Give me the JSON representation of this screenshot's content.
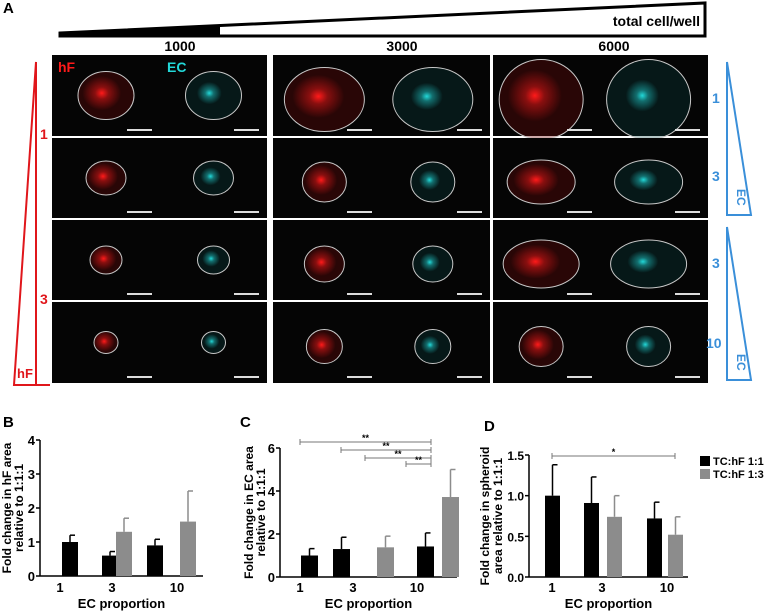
{
  "panels": {
    "a": "A",
    "b": "B",
    "c": "C",
    "d": "D"
  },
  "panel_a": {
    "gradient_label": "total cell/well",
    "columns": [
      "1000",
      "3000",
      "6000"
    ],
    "channel_labels": {
      "hf": "hF",
      "ec": "EC"
    },
    "left_wedge": {
      "label": "hF",
      "ticks": [
        "1",
        "3"
      ],
      "color": "#e0161b"
    },
    "right_wedges": {
      "label": "EC",
      "ticks": [
        "1",
        "3",
        "3",
        "10"
      ],
      "color": "#3a8fd9"
    },
    "colors": {
      "hf": "#ff1a1a",
      "ec": "#22d8d8",
      "outline": "#c8c8c8"
    }
  },
  "legend": {
    "items": [
      {
        "label": "TC:hF 1:1",
        "color": "#000000"
      },
      {
        "label": "TC:hF 1:3",
        "color": "#8c8c8c"
      }
    ]
  },
  "chart_data": [
    {
      "type": "bar",
      "panel": "B",
      "ylabel": [
        "Fold change in hF area",
        "relative to 1:1:1"
      ],
      "xlabel": "EC proportion",
      "categories": [
        "1",
        "3",
        "10"
      ],
      "ylim": [
        0,
        4
      ],
      "yticks": [
        "0",
        "1",
        "2",
        "3",
        "4"
      ],
      "series": [
        {
          "name": "TC:hF 1:1",
          "values": [
            1.0,
            0.6,
            0.9
          ],
          "error": [
            0.2,
            0.12,
            0.18
          ]
        },
        {
          "name": "TC:hF 1:3",
          "values": [
            null,
            1.3,
            1.6
          ],
          "error": [
            null,
            0.4,
            0.9
          ]
        }
      ],
      "significance": []
    },
    {
      "type": "bar",
      "panel": "C",
      "ylabel": [
        "Fold change in EC area",
        "relative to 1:1:1"
      ],
      "xlabel": "EC proportion",
      "categories": [
        "1",
        "3",
        "10"
      ],
      "ylim": [
        0,
        6
      ],
      "yticks": [
        "0",
        "2",
        "4",
        "6"
      ],
      "series": [
        {
          "name": "TC:hF 1:1",
          "values": [
            1.0,
            1.3,
            1.42
          ],
          "error": [
            0.32,
            0.55,
            0.63
          ]
        },
        {
          "name": "TC:hF 1:3",
          "values": [
            null,
            1.38,
            3.72
          ],
          "error": [
            null,
            0.52,
            1.28
          ]
        }
      ],
      "significance": [
        {
          "from": "1 / TC:hF 1:1",
          "to": "10 / TC:hF 1:3",
          "label": "**"
        },
        {
          "from": "3 / TC:hF 1:1",
          "to": "10 / TC:hF 1:3",
          "label": "**"
        },
        {
          "from": "3 / TC:hF 1:3",
          "to": "10 / TC:hF 1:3",
          "label": "**"
        },
        {
          "from": "10 / TC:hF 1:1",
          "to": "10 / TC:hF 1:3",
          "label": "**"
        }
      ]
    },
    {
      "type": "bar",
      "panel": "D",
      "ylabel": [
        "Fold change in spheroid",
        "area relative to 1:1:1"
      ],
      "xlabel": "EC proportion",
      "categories": [
        "1",
        "3",
        "10"
      ],
      "ylim": [
        0,
        1.5
      ],
      "yticks": [
        "0.0",
        "0.5",
        "1.0",
        "1.5"
      ],
      "series": [
        {
          "name": "TC:hF 1:1",
          "values": [
            1.0,
            0.91,
            0.72
          ],
          "error": [
            0.38,
            0.32,
            0.2
          ]
        },
        {
          "name": "TC:hF 1:3",
          "values": [
            null,
            0.74,
            0.52
          ],
          "error": [
            null,
            0.26,
            0.22
          ]
        }
      ],
      "significance": [
        {
          "from": "1 / TC:hF 1:1",
          "to": "10 / TC:hF 1:3",
          "label": "*"
        }
      ]
    }
  ]
}
